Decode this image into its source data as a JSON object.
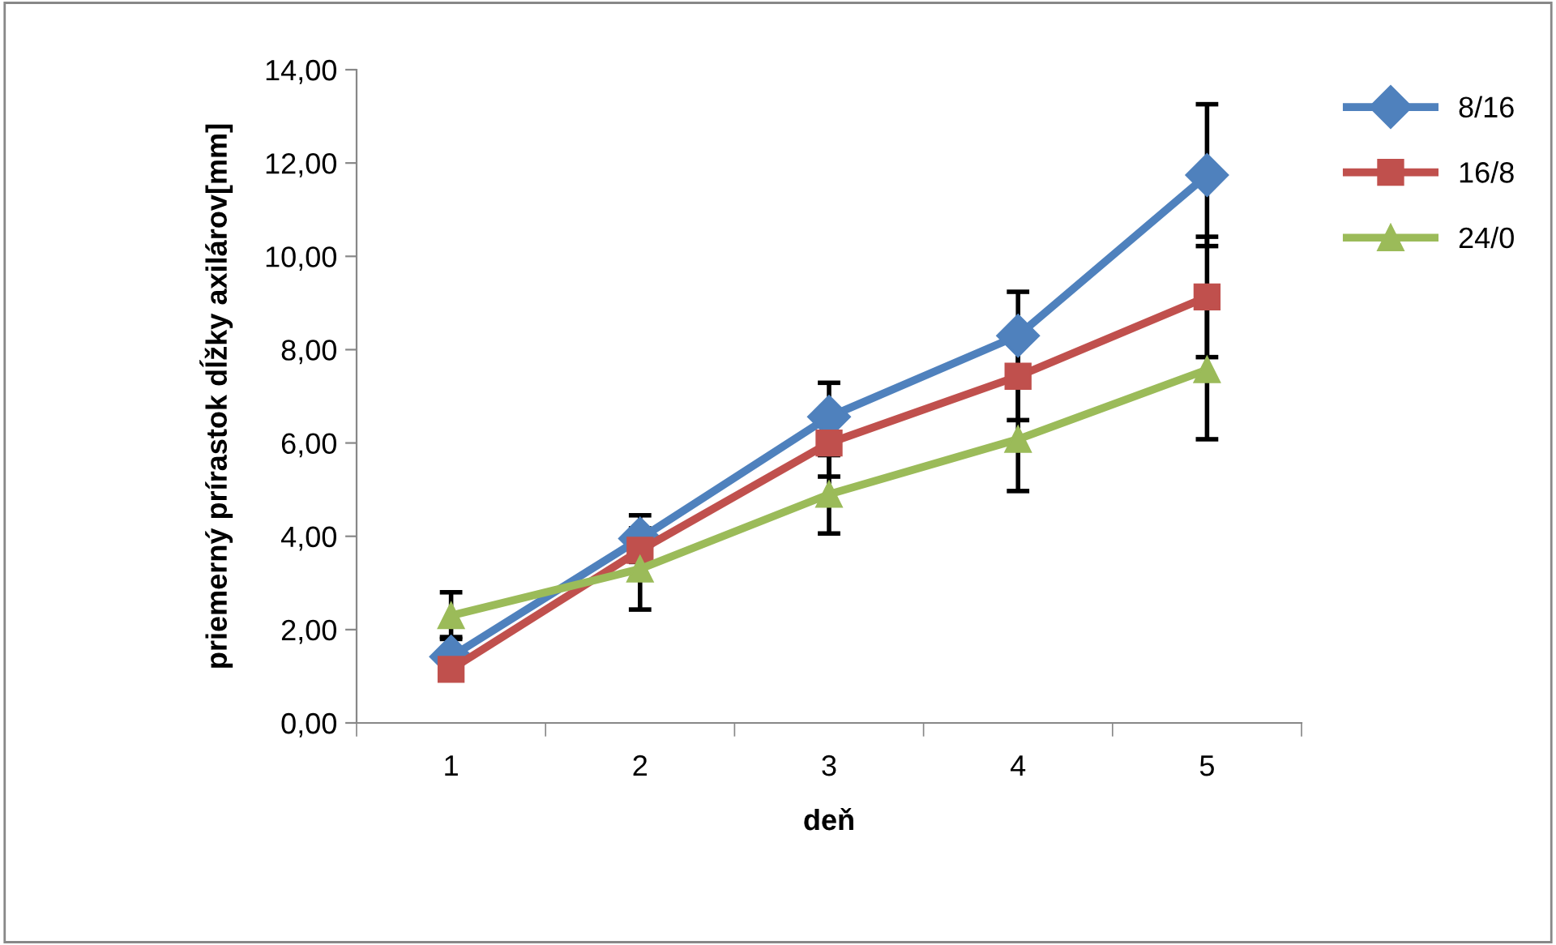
{
  "chart_data": {
    "type": "line",
    "xlabel": "deň",
    "ylabel": "priemerný prírastok dĺžky axilárov[mm]",
    "categories": [
      "1",
      "2",
      "3",
      "4",
      "5"
    ],
    "series": [
      {
        "name": "8/16",
        "color": "#4f81bd",
        "marker": "diamond",
        "values": [
          1.42,
          3.95,
          6.56,
          8.3,
          11.74
        ],
        "errors": [
          0.42,
          0.5,
          0.73,
          0.94,
          1.52
        ]
      },
      {
        "name": "16/8",
        "color": "#c0504d",
        "marker": "square",
        "values": [
          1.15,
          3.7,
          6.0,
          7.43,
          9.13
        ],
        "errors": [
          null,
          null,
          0.72,
          0.94,
          1.29
        ]
      },
      {
        "name": "24/0",
        "color": "#9bbb59",
        "marker": "triangle",
        "values": [
          2.3,
          3.3,
          4.9,
          6.08,
          7.57
        ],
        "errors": [
          0.5,
          0.87,
          0.84,
          1.11,
          1.49
        ]
      }
    ],
    "ylim": [
      0,
      14
    ],
    "yticks": [
      {
        "value": 0,
        "label": "0,00"
      },
      {
        "value": 2,
        "label": "2,00"
      },
      {
        "value": 4,
        "label": "4,00"
      },
      {
        "value": 6,
        "label": "6,00"
      },
      {
        "value": 8,
        "label": "8,00"
      },
      {
        "value": 10,
        "label": "10,00"
      },
      {
        "value": 12,
        "label": "12,00"
      },
      {
        "value": 14,
        "label": "14,00"
      }
    ],
    "legend": "right",
    "grid": false,
    "line_style": "solid"
  }
}
